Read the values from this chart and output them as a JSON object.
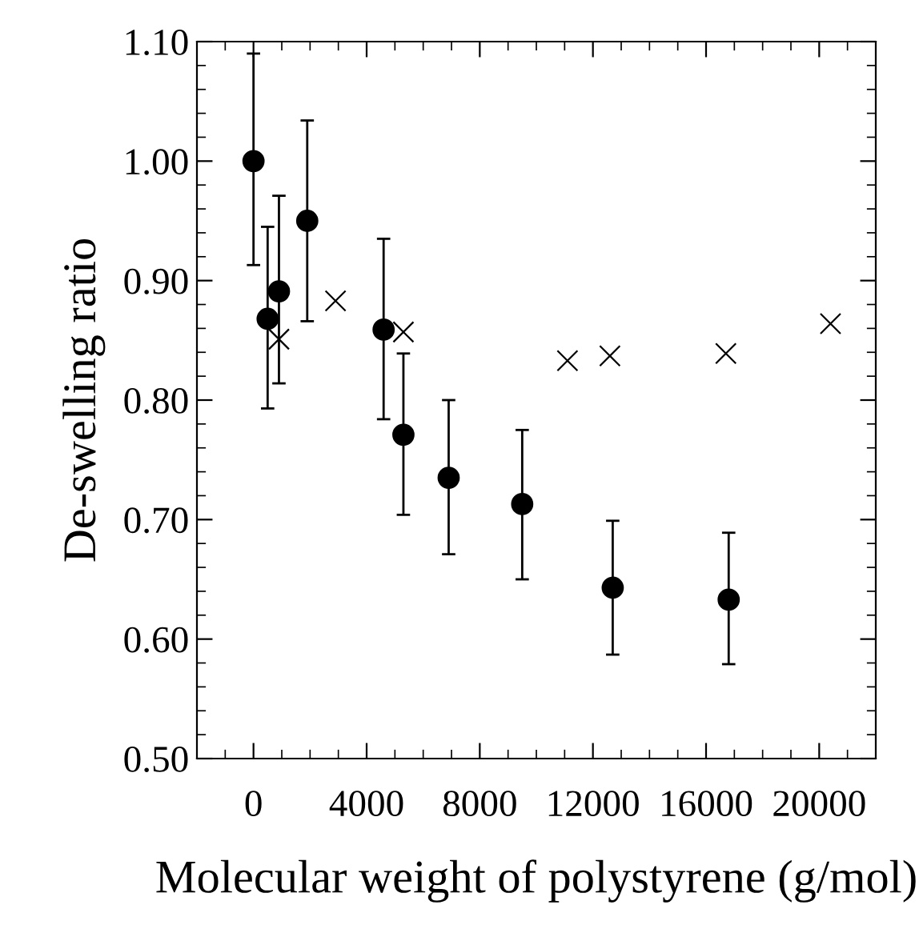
{
  "chart_data": {
    "type": "scatter",
    "xlabel": "Molecular weight of polystyrene (g/mol)",
    "ylabel": "De-swelling ratio",
    "xlim": [
      -2000,
      22000
    ],
    "xticks": [
      0,
      4000,
      8000,
      12000,
      16000,
      20000
    ],
    "ylim": [
      0.5,
      1.1
    ],
    "yticks": [
      {
        "value": 0.5,
        "label": "0.50"
      },
      {
        "value": 0.6,
        "label": "0.60"
      },
      {
        "value": 0.7,
        "label": "0.70"
      },
      {
        "value": 0.8,
        "label": "0.80"
      },
      {
        "value": 0.9,
        "label": "0.90"
      },
      {
        "value": 1.0,
        "label": "1.00"
      },
      {
        "value": 1.1,
        "label": "1.10"
      }
    ],
    "grid": false,
    "legend": false,
    "series": [
      {
        "color": "#000000",
        "marker": "circle",
        "x": [
          0,
          500,
          900,
          1900,
          4600,
          5300,
          6900,
          9500,
          12700,
          16800
        ],
        "values": [
          1.0,
          0.868,
          0.891,
          0.95,
          0.859,
          0.771,
          0.735,
          0.713,
          0.643,
          0.633
        ],
        "errors": [
          [
            0.913,
            1.09
          ],
          [
            0.793,
            0.945
          ],
          [
            0.814,
            0.971
          ],
          [
            0.866,
            1.034
          ],
          [
            0.784,
            0.935
          ],
          [
            0.704,
            0.839
          ],
          [
            0.671,
            0.8
          ],
          [
            0.65,
            0.775
          ],
          [
            0.587,
            0.699
          ],
          [
            0.579,
            0.689
          ]
        ]
      },
      {
        "color": "#000000",
        "marker": "cross",
        "x": [
          900,
          2900,
          5300,
          11100,
          12600,
          16700,
          20400
        ],
        "values": [
          0.851,
          0.883,
          0.857,
          0.833,
          0.837,
          0.839,
          0.864
        ]
      }
    ]
  }
}
